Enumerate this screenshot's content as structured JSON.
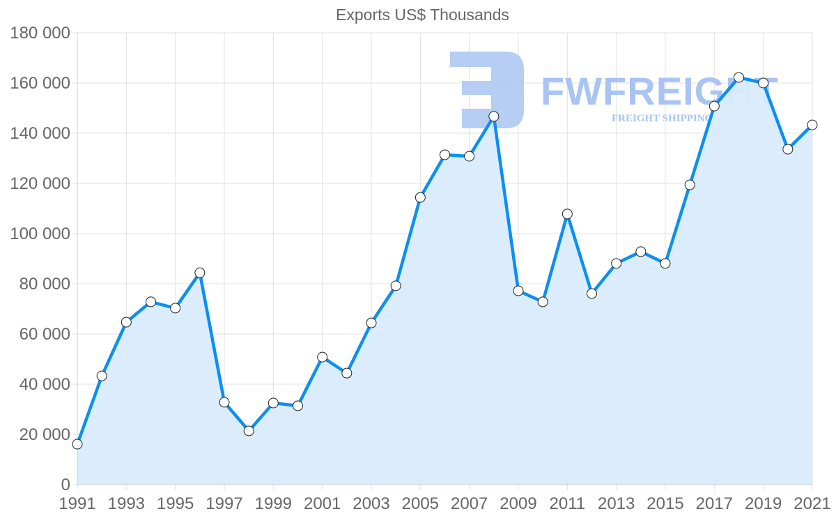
{
  "chart_data": {
    "type": "area",
    "title": "Exports US$ Thousands",
    "xlabel": "",
    "ylabel": "",
    "ylim": [
      0,
      180000
    ],
    "y_ticks": [
      "0",
      "20 000",
      "40 000",
      "60 000",
      "80 000",
      "100 000",
      "120 000",
      "140 000",
      "160 000",
      "180 000"
    ],
    "y_tick_values": [
      0,
      20000,
      40000,
      60000,
      80000,
      100000,
      120000,
      140000,
      160000,
      180000
    ],
    "x_tick_labels": [
      "1991",
      "1993",
      "1995",
      "1997",
      "1999",
      "2001",
      "2003",
      "2005",
      "2007",
      "2009",
      "2011",
      "2013",
      "2015",
      "2017",
      "2019",
      "2021"
    ],
    "categories": [
      "1991",
      "1992",
      "1993",
      "1994",
      "1995",
      "1996",
      "1997",
      "1998",
      "1999",
      "2000",
      "2001",
      "2002",
      "2003",
      "2004",
      "2005",
      "2006",
      "2007",
      "2008",
      "2009",
      "2010",
      "2011",
      "2012",
      "2013",
      "2014",
      "2015",
      "2016",
      "2017",
      "2018",
      "2019",
      "2020",
      "2021"
    ],
    "series": [
      {
        "name": "Exports US$ Thousands",
        "values": [
          16100,
          43300,
          64700,
          72800,
          70300,
          84400,
          32800,
          21400,
          32500,
          31400,
          50800,
          44400,
          64400,
          79200,
          114400,
          131400,
          130800,
          146700,
          77200,
          72800,
          107800,
          76100,
          88100,
          92800,
          88100,
          119400,
          150800,
          162200,
          160000,
          133600,
          143300
        ]
      }
    ],
    "grid": true,
    "legend": "none",
    "colors": {
      "line": "#0d8ff0",
      "fill": "#d9ecfd",
      "grid": "#e0e0e0",
      "point_fill": "#ffffff",
      "point_stroke": "#222222"
    }
  },
  "watermark": {
    "brand": "FWFREIGHT",
    "tagline": "FREIGHT SHIPPING"
  }
}
